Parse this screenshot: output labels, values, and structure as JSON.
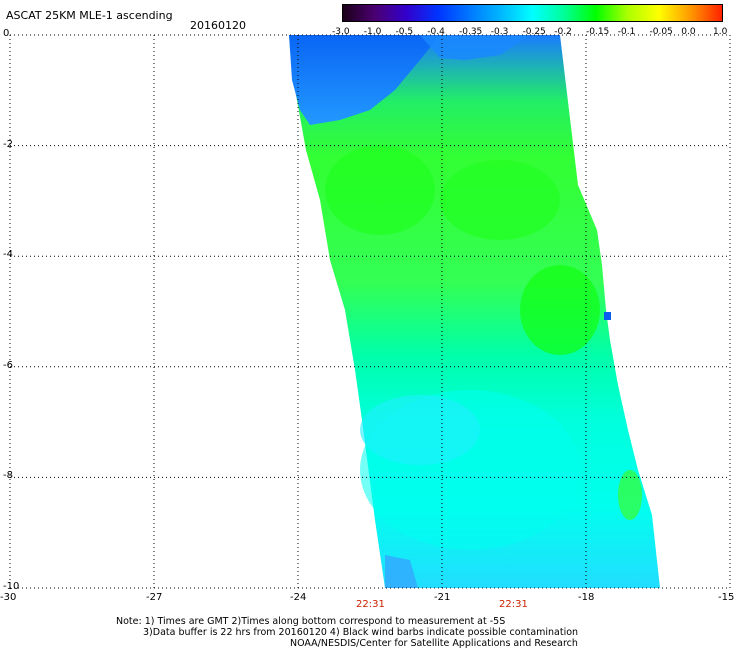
{
  "header": {
    "title": "ASCAT 25KM MLE-1 ascending",
    "date": "20160120"
  },
  "colorbar": {
    "labels": [
      "-3.0",
      "-1.0",
      "-0.5",
      "-0.4",
      "-0.35",
      "-0.3",
      "-0.25",
      "-0.2",
      "-0.15",
      "-0.1",
      "-0.05",
      "0.0",
      "1.0"
    ],
    "colors": [
      "#1a0018",
      "#4a0070",
      "#3300cc",
      "#0033ff",
      "#0077ff",
      "#00b7ff",
      "#00ffff",
      "#00ff99",
      "#00ff00",
      "#aaff00",
      "#ffff00",
      "#ff9900",
      "#ff2200"
    ]
  },
  "map": {
    "x_ticks": [
      "-30",
      "-27",
      "-24",
      "-21",
      "-18",
      "-15"
    ],
    "y_ticks": [
      "0",
      "-2",
      "-4",
      "-6",
      "-8",
      "-10"
    ],
    "x_range": [
      -30,
      -15
    ],
    "y_range": [
      0,
      -10
    ],
    "swath_colors": {
      "deep_blue": "#0a5cf0",
      "blue": "#1a7bff",
      "light_green": "#33ff66",
      "green": "#22ff22",
      "mint": "#00ffaa",
      "cyan": "#00ffee",
      "light_cyan": "#22eeff"
    },
    "time_labels": [
      "22:31",
      "22:31"
    ]
  },
  "notes": {
    "line1": "Note: 1) Times are GMT 2)Times along bottom correspond to measurement at -5S",
    "line2": "3)Data buffer is 22 hrs from 20160120 4) Black wind barbs indicate possible contamination",
    "line3": "NOAA/NESDIS/Center for Satellite Applications and Research"
  }
}
